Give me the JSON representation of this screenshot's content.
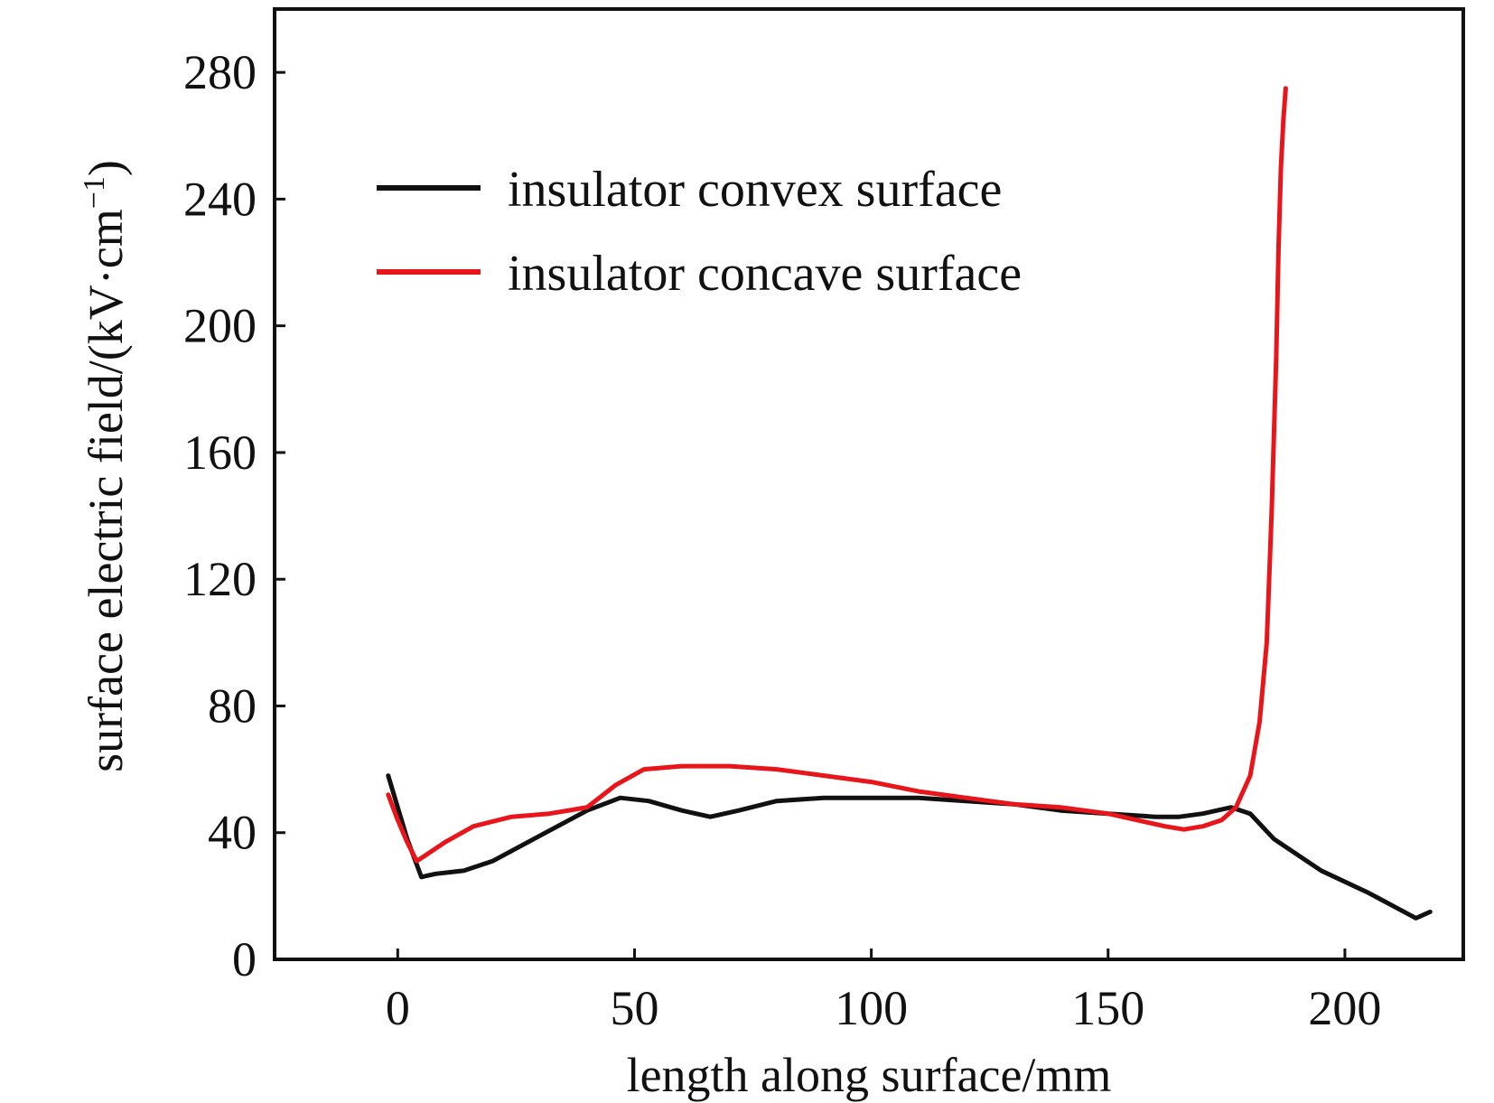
{
  "chart_data": {
    "type": "line",
    "title": "",
    "xlabel": "length along surface/mm",
    "ylabel": "surface electric field/(kV·cm",
    "ylabel_sup": "−1",
    "ylabel_close": ")",
    "xlim": [
      -26,
      225
    ],
    "ylim": [
      0,
      300
    ],
    "xticks": [
      0,
      50,
      100,
      150,
      200
    ],
    "xtick_labels": [
      "0",
      "50",
      "100",
      "150",
      "200"
    ],
    "yticks": [
      0,
      40,
      80,
      120,
      160,
      200,
      240,
      280
    ],
    "ytick_labels": [
      "0",
      "40",
      "80",
      "120",
      "160",
      "200",
      "240",
      "280"
    ],
    "grid": false,
    "legend_position": "top-left",
    "series": [
      {
        "name": "insulator convex surface",
        "color": "#111111",
        "x": [
          -2,
          0,
          2,
          5,
          8,
          14,
          20,
          30,
          40,
          47,
          53,
          60,
          66,
          72,
          80,
          90,
          100,
          110,
          120,
          130,
          140,
          150,
          160,
          165,
          170,
          176,
          180,
          185,
          195,
          205,
          210,
          215,
          218
        ],
        "y": [
          58,
          48,
          38,
          26,
          27,
          28,
          31,
          39,
          47,
          51,
          50,
          47,
          45,
          47,
          50,
          51,
          51,
          51,
          50,
          49,
          47,
          46,
          45,
          45,
          46,
          48,
          46,
          38,
          28,
          21,
          17,
          13,
          15
        ]
      },
      {
        "name": "insulator concave surface",
        "color": "#e8151b",
        "x": [
          -2,
          0,
          2,
          4,
          6,
          10,
          16,
          24,
          32,
          40,
          46,
          52,
          60,
          70,
          80,
          90,
          100,
          110,
          120,
          130,
          140,
          150,
          156,
          162,
          166,
          170,
          174,
          177,
          180,
          182,
          183.5,
          184.5,
          185.5,
          186,
          186.5,
          187,
          187.5
        ],
        "y": [
          52,
          44,
          37,
          31,
          33,
          37,
          42,
          45,
          46,
          48,
          55,
          60,
          61,
          61,
          60,
          58,
          56,
          53,
          51,
          49,
          48,
          46,
          44,
          42,
          41,
          42,
          44,
          48,
          58,
          75,
          100,
          140,
          190,
          225,
          250,
          265,
          275
        ]
      }
    ]
  }
}
